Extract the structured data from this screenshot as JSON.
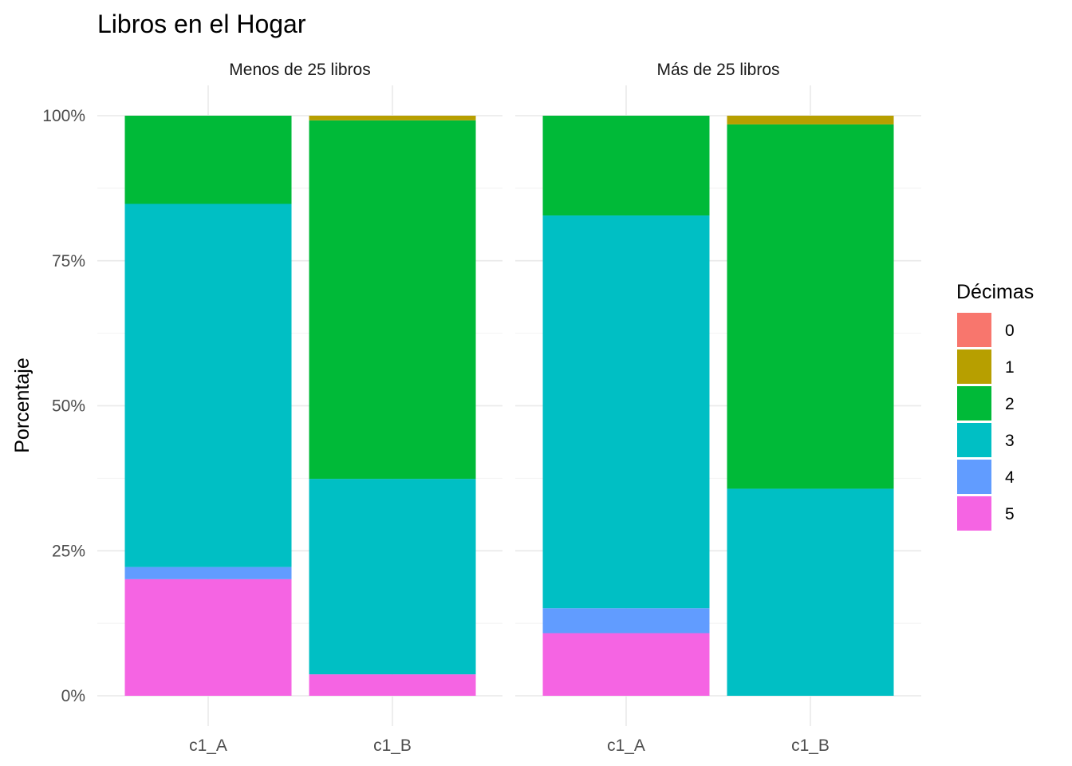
{
  "chart_data": {
    "type": "bar",
    "stacked": true,
    "title": "Libros en el Hogar",
    "xlabel": "",
    "ylabel": "Porcentaje",
    "ylim": [
      0,
      1
    ],
    "yticks": [
      "0%",
      "25%",
      "50%",
      "75%",
      "100%"
    ],
    "categories": [
      "c1_A",
      "c1_B"
    ],
    "legend": {
      "title": "Décimas",
      "position": "right",
      "entries": [
        {
          "label": "0",
          "color": "#F8766D"
        },
        {
          "label": "1",
          "color": "#B79F00"
        },
        {
          "label": "2",
          "color": "#00BA38"
        },
        {
          "label": "3",
          "color": "#00BFC4"
        },
        {
          "label": "4",
          "color": "#619CFF"
        },
        {
          "label": "5",
          "color": "#F564E3"
        }
      ]
    },
    "facets": [
      {
        "label": "Menos de 25 libros",
        "series": [
          {
            "name": "0",
            "values": [
              0.0,
              0.0
            ]
          },
          {
            "name": "1",
            "values": [
              0.0,
              0.008
            ]
          },
          {
            "name": "2",
            "values": [
              0.152,
              0.618
            ]
          },
          {
            "name": "3",
            "values": [
              0.626,
              0.337
            ]
          },
          {
            "name": "4",
            "values": [
              0.021,
              0.0
            ]
          },
          {
            "name": "5",
            "values": [
              0.201,
              0.037
            ]
          }
        ]
      },
      {
        "label": "Más de 25 libros",
        "series": [
          {
            "name": "0",
            "values": [
              0.0,
              0.0
            ]
          },
          {
            "name": "1",
            "values": [
              0.0,
              0.015
            ]
          },
          {
            "name": "2",
            "values": [
              0.172,
              0.628
            ]
          },
          {
            "name": "3",
            "values": [
              0.677,
              0.357
            ]
          },
          {
            "name": "4",
            "values": [
              0.043,
              0.0
            ]
          },
          {
            "name": "5",
            "values": [
              0.108,
              0.0
            ]
          }
        ]
      }
    ]
  }
}
